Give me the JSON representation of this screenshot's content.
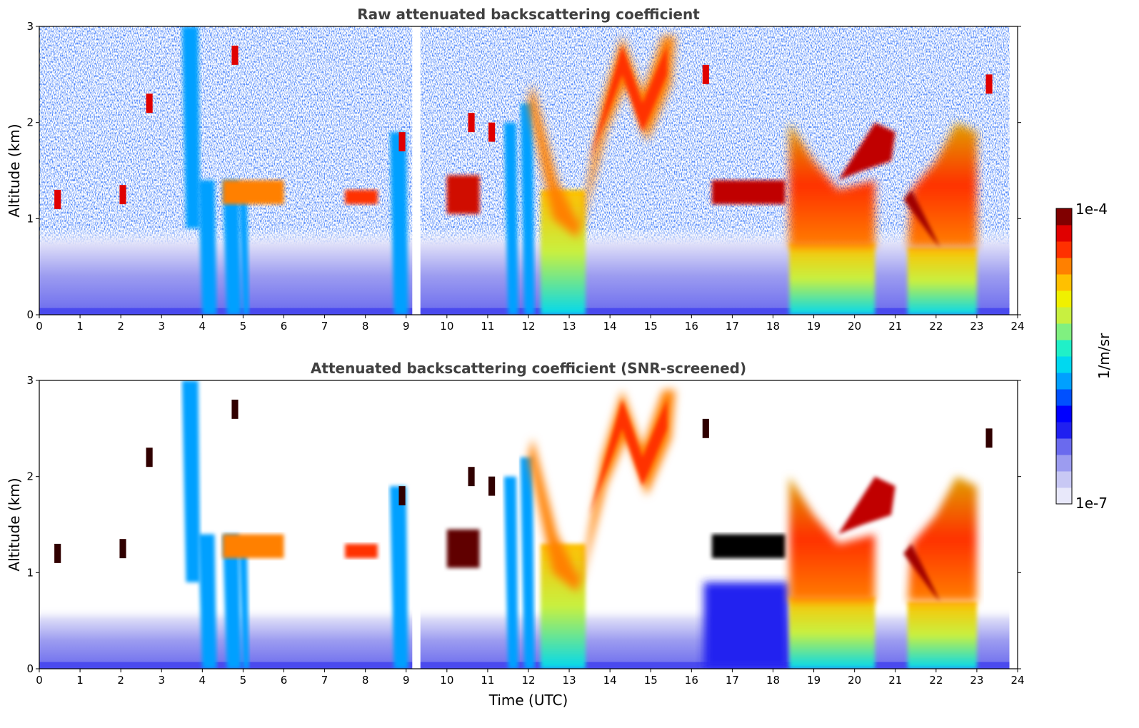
{
  "chart_data": [
    {
      "type": "heatmap",
      "title": "Raw attenuated backscattering coefficient",
      "xlabel": "",
      "ylabel": "Altitude (km)",
      "xlim": [
        0,
        24
      ],
      "ylim": [
        0,
        3
      ],
      "x_ticks": [
        "0",
        "1",
        "2",
        "3",
        "4",
        "5",
        "6",
        "7",
        "8",
        "9",
        "10",
        "11",
        "12",
        "13",
        "14",
        "15",
        "16",
        "17",
        "18",
        "19",
        "20",
        "21",
        "22",
        "23",
        "24"
      ],
      "y_ticks": [
        "0",
        "1",
        "2",
        "3"
      ],
      "data_gap_hours": [
        9.15,
        9.35
      ],
      "features": [
        {
          "desc": "near-surface layer",
          "x": [
            0,
            23.8
          ],
          "y": [
            0,
            0.6
          ],
          "level": 0.18
        },
        {
          "desc": "cloud layer",
          "x": [
            16.5,
            18.3
          ],
          "y": [
            1.15,
            1.4
          ],
          "level": 0.95
        },
        {
          "desc": "cloud layer",
          "x": [
            10.0,
            10.8
          ],
          "y": [
            1.05,
            1.45
          ],
          "level": 0.9
        },
        {
          "desc": "rising layer",
          "x": [
            12.0,
            15.6
          ],
          "y": [
            0.8,
            2.9
          ],
          "level": 0.8
        },
        {
          "desc": "precipitation column",
          "x": [
            12.3,
            13.4
          ],
          "y": [
            0,
            1.3
          ],
          "level": 0.55
        },
        {
          "desc": "precipitation column",
          "x": [
            18.4,
            20.5
          ],
          "y": [
            0,
            2.0
          ],
          "level": 0.6
        },
        {
          "desc": "elevated layer",
          "x": [
            19.6,
            21.0
          ],
          "y": [
            1.4,
            2.0
          ],
          "level": 0.85
        },
        {
          "desc": "precipitation column",
          "x": [
            21.3,
            23.0
          ],
          "y": [
            0,
            1.9
          ],
          "level": 0.6
        }
      ]
    },
    {
      "type": "heatmap",
      "title": "Attenuated backscattering coefficient (SNR-screened)",
      "xlabel": "Time (UTC)",
      "ylabel": "Altitude (km)",
      "xlim": [
        0,
        24
      ],
      "ylim": [
        0,
        3
      ],
      "x_ticks": [
        "0",
        "1",
        "2",
        "3",
        "4",
        "5",
        "6",
        "7",
        "8",
        "9",
        "10",
        "11",
        "12",
        "13",
        "14",
        "15",
        "16",
        "17",
        "18",
        "19",
        "20",
        "21",
        "22",
        "23",
        "24"
      ],
      "y_ticks": [
        "0",
        "1",
        "2",
        "3"
      ],
      "data_gap_hours": [
        9.15,
        9.35
      ]
    }
  ],
  "colorbar": {
    "label": "1/m/sr",
    "max_label": "1e-4",
    "min_label": "1e-7",
    "colors": [
      "#e8e8fa",
      "#c8c8f4",
      "#9c9cf0",
      "#6a6aee",
      "#2020f0",
      "#0000ff",
      "#0050ff",
      "#00a0ff",
      "#00d8f0",
      "#20f0c8",
      "#80f080",
      "#c8f040",
      "#f0f000",
      "#ffc000",
      "#ff8000",
      "#ff3000",
      "#e00000",
      "#800000"
    ]
  }
}
